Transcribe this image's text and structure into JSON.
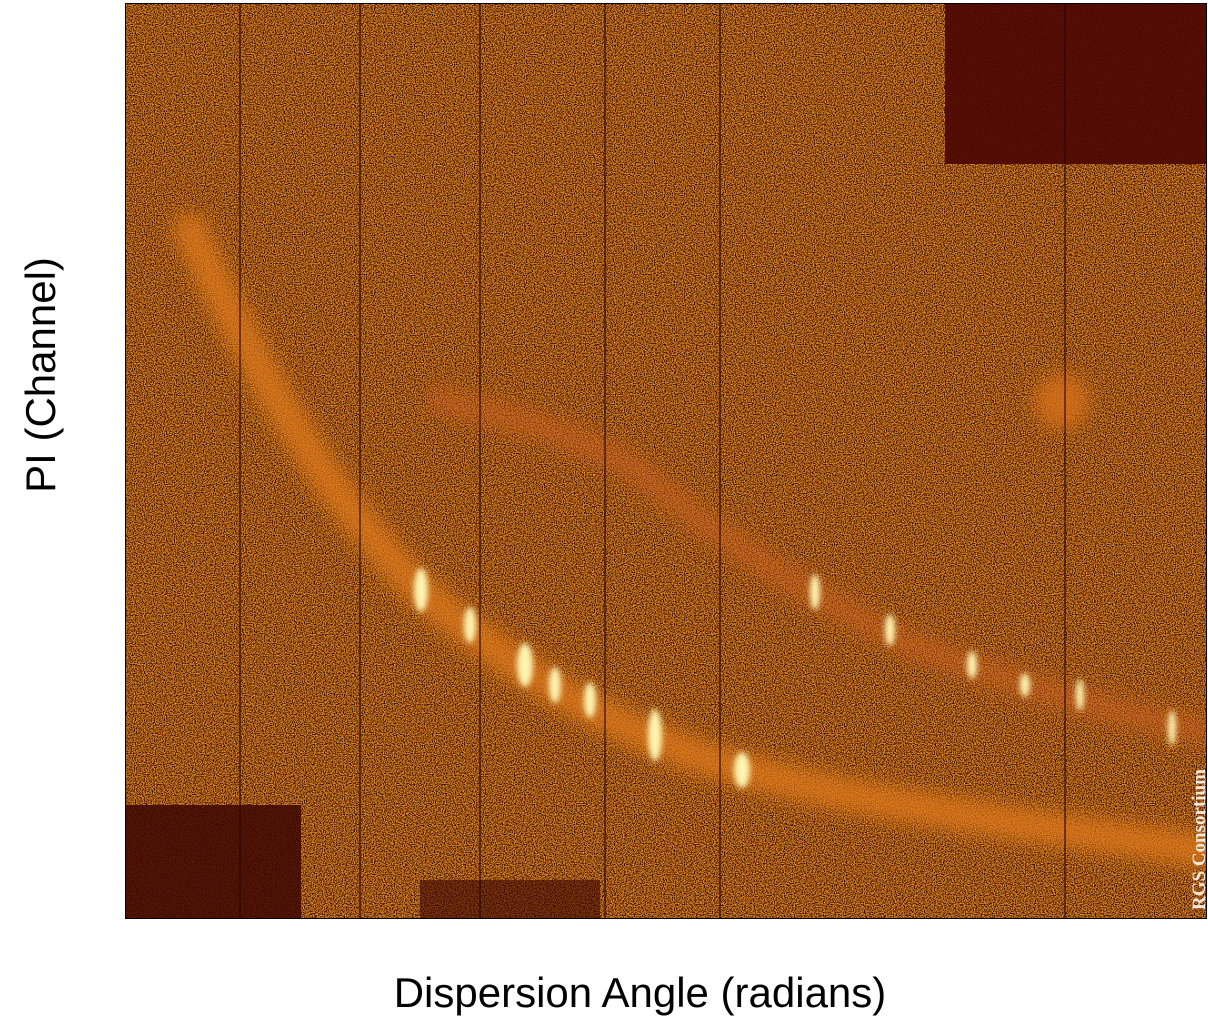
{
  "figure": {
    "y_label": "PI (Channel)",
    "x_label": "Dispersion Angle (radians)",
    "credit": "RGS Consortium"
  }
}
